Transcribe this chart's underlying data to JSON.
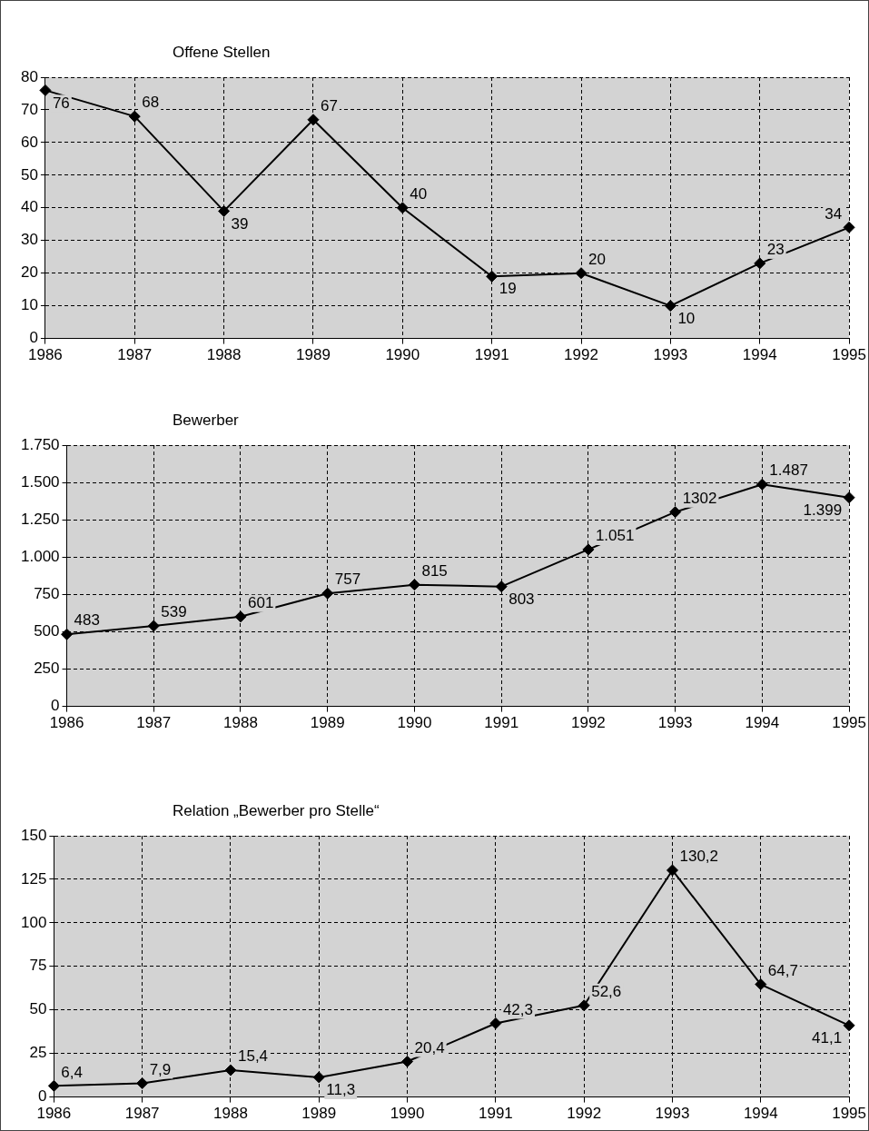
{
  "chart_data": [
    {
      "type": "line",
      "title": "Offene Stellen",
      "categories": [
        "1986",
        "1987",
        "1988",
        "1989",
        "1990",
        "1991",
        "1992",
        "1993",
        "1994",
        "1995"
      ],
      "series": [
        {
          "color": "#000000",
          "values": [
            76,
            68,
            39,
            67,
            40,
            19,
            20,
            10,
            23,
            34
          ]
        }
      ],
      "ylim": [
        0,
        80
      ],
      "yticks": [
        0,
        10,
        20,
        30,
        40,
        50,
        60,
        70,
        80
      ],
      "grid": true,
      "legend": false,
      "marker": "diamond",
      "line_style": "solid",
      "data_labels": true
    },
    {
      "type": "line",
      "title": "Bewerber",
      "categories": [
        "1986",
        "1987",
        "1988",
        "1989",
        "1990",
        "1991",
        "1992",
        "1993",
        "1994",
        "1995"
      ],
      "series": [
        {
          "color": "#000000",
          "values": [
            483,
            539,
            601,
            757,
            815,
            803,
            1051,
            1302,
            1487,
            1399
          ],
          "value_labels": [
            "483",
            "539",
            "601",
            "757",
            "815",
            "803",
            "1.051",
            "1302",
            "1.487",
            "1.399"
          ]
        }
      ],
      "ylim": [
        0,
        1750
      ],
      "yticks": [
        0,
        250,
        500,
        750,
        {
          "value": 1000,
          "label": "1.000"
        },
        {
          "value": 1250,
          "label": "1.250"
        },
        {
          "value": 1500,
          "label": "1.500"
        },
        {
          "value": 1750,
          "label": "1.750"
        }
      ],
      "grid": true,
      "legend": false,
      "marker": "diamond",
      "line_style": "solid"
    },
    {
      "type": "line",
      "title": "Relation „Bewerber pro Stelle“",
      "categories": [
        "1986",
        "1987",
        "1988",
        "1989",
        "1990",
        "1991",
        "1992",
        "1993",
        "1994",
        "1995"
      ],
      "series": [
        {
          "color": "#000000",
          "values": [
            6.4,
            7.9,
            15.4,
            11.3,
            20.4,
            42.3,
            52.6,
            130.2,
            64.7,
            41.1
          ],
          "value_labels": [
            "6,4",
            "7,9",
            "15,4",
            "11,3",
            "20,4",
            "42,3",
            "52,6",
            "130,2",
            "64,7",
            "41,1"
          ]
        }
      ],
      "ylim": [
        0,
        150
      ],
      "yticks": [
        0,
        25,
        50,
        75,
        100,
        125,
        150
      ],
      "grid": true,
      "legend": false,
      "marker": "diamond",
      "line_style": "solid"
    }
  ]
}
